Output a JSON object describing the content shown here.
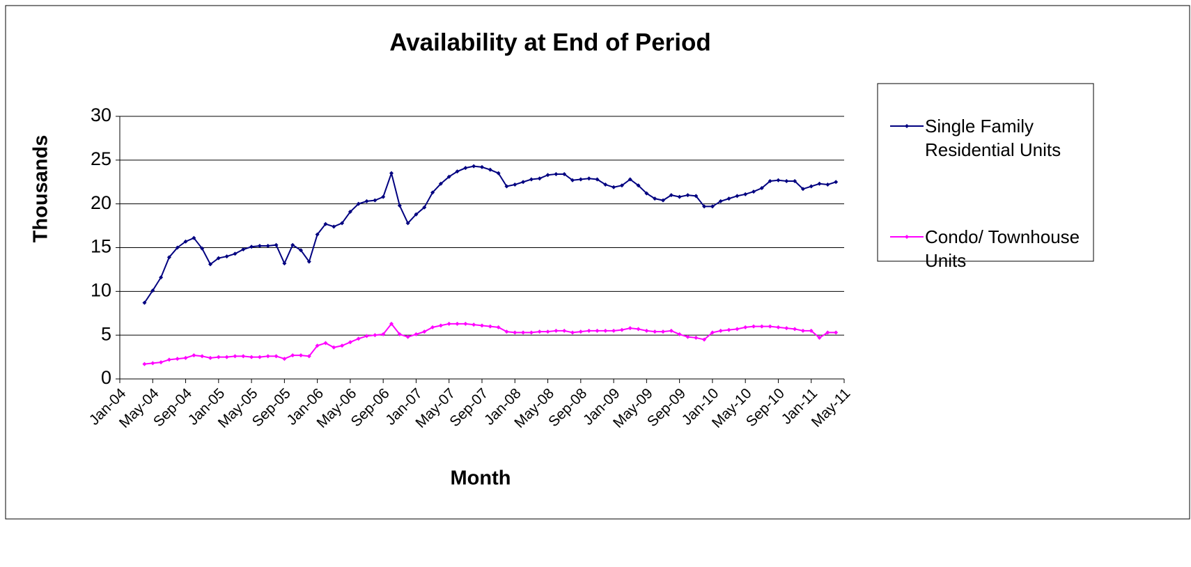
{
  "chart_data": {
    "type": "line",
    "title": "Availability at End of Period",
    "x_label": "Month",
    "y_label": "Thousands",
    "categories": [
      "Jan-04",
      null,
      null,
      null,
      "May-04",
      null,
      null,
      null,
      "Sep-04",
      null,
      null,
      null,
      "Jan-05",
      null,
      null,
      null,
      "May-05",
      null,
      null,
      null,
      "Sep-05",
      null,
      null,
      null,
      "Jan-06",
      null,
      null,
      null,
      "May-06",
      null,
      null,
      null,
      "Sep-06",
      null,
      null,
      null,
      "Jan-07",
      null,
      null,
      null,
      "May-07",
      null,
      null,
      null,
      "Sep-07",
      null,
      null,
      null,
      "Jan-08",
      null,
      null,
      null,
      "May-08",
      null,
      null,
      null,
      "Sep-08",
      null,
      null,
      null,
      "Jan-09",
      null,
      null,
      null,
      "May-09",
      null,
      null,
      null,
      "Sep-09",
      null,
      null,
      null,
      "Jan-10",
      null,
      null,
      null,
      "May-10",
      null,
      null,
      null,
      "Sep-10",
      null,
      null,
      null,
      "Jan-11",
      null,
      null,
      null,
      "May-11"
    ],
    "series": [
      {
        "name": "Single Family Residential Units",
        "color": "#000080",
        "values": [
          null,
          null,
          null,
          8.7,
          10.1,
          11.6,
          13.9,
          15.0,
          15.7,
          16.1,
          14.9,
          13.1,
          13.8,
          14.0,
          14.3,
          14.8,
          15.1,
          15.2,
          15.2,
          15.3,
          13.2,
          15.3,
          14.7,
          13.4,
          16.5,
          17.7,
          17.4,
          17.8,
          19.1,
          20.0,
          20.3,
          20.4,
          20.8,
          23.5,
          19.8,
          17.8,
          18.8,
          19.6,
          21.3,
          22.3,
          23.1,
          23.7,
          24.1,
          24.3,
          24.2,
          23.9,
          23.5,
          22.0,
          22.2,
          22.5,
          22.8,
          22.9,
          23.3,
          23.4,
          23.4,
          22.7,
          22.8,
          22.9,
          22.8,
          22.2,
          21.9,
          22.1,
          22.8,
          22.1,
          21.2,
          20.6,
          20.4,
          21.0,
          20.8,
          21.0,
          20.9,
          19.7,
          19.7,
          20.3,
          20.6,
          20.9,
          21.1,
          21.4,
          21.8,
          22.6,
          22.7,
          22.6,
          22.6,
          21.7,
          22.0,
          22.3,
          22.2,
          22.5,
          null
        ]
      },
      {
        "name": "Condo/ Townhouse Units",
        "color": "#ff00ff",
        "values": [
          null,
          null,
          null,
          1.7,
          1.8,
          1.9,
          2.2,
          2.3,
          2.4,
          2.7,
          2.6,
          2.4,
          2.5,
          2.5,
          2.6,
          2.6,
          2.5,
          2.5,
          2.6,
          2.6,
          2.3,
          2.7,
          2.7,
          2.6,
          3.8,
          4.1,
          3.6,
          3.8,
          4.2,
          4.6,
          4.9,
          5.0,
          5.1,
          6.3,
          5.1,
          4.8,
          5.1,
          5.4,
          5.9,
          6.1,
          6.3,
          6.3,
          6.3,
          6.2,
          6.1,
          6.0,
          5.9,
          5.4,
          5.3,
          5.3,
          5.3,
          5.4,
          5.4,
          5.5,
          5.5,
          5.3,
          5.4,
          5.5,
          5.5,
          5.5,
          5.5,
          5.6,
          5.8,
          5.7,
          5.5,
          5.4,
          5.4,
          5.5,
          5.1,
          4.8,
          4.7,
          4.5,
          5.3,
          5.5,
          5.6,
          5.7,
          5.9,
          6.0,
          6.0,
          6.0,
          5.9,
          5.8,
          5.7,
          5.5,
          5.5,
          4.7,
          5.3,
          5.3,
          null
        ]
      }
    ],
    "ylim": [
      0,
      30
    ],
    "yticks": [
      0,
      5,
      10,
      15,
      20,
      25,
      30
    ],
    "grid": true,
    "legend": "right"
  }
}
